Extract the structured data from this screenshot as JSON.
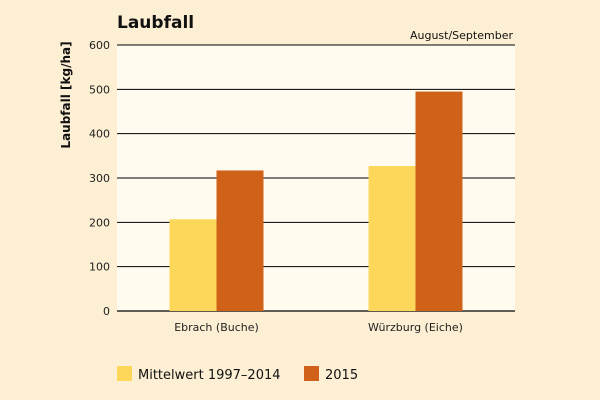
{
  "chart_data": {
    "type": "bar",
    "title": "Laubfall",
    "subtitle": "August/September",
    "xlabel": "",
    "ylabel": "Laubfall [kg/ha]",
    "categories": [
      "Ebrach (Buche)",
      "Würzburg (Eiche)"
    ],
    "series": [
      {
        "name": "Mittelwert 1997–2014",
        "values": [
          207,
          327
        ],
        "color": "#fdd75a"
      },
      {
        "name": "2015",
        "values": [
          317,
          495
        ],
        "color": "#cf6119"
      }
    ],
    "ylim": [
      0,
      600
    ],
    "yticks": [
      0,
      100,
      200,
      300,
      400,
      500,
      600
    ],
    "grid": true,
    "legend_position": "bottom",
    "colors": {
      "background": "#fcefd3",
      "plot_background": "#fffcef",
      "gridline": "#000000"
    }
  }
}
